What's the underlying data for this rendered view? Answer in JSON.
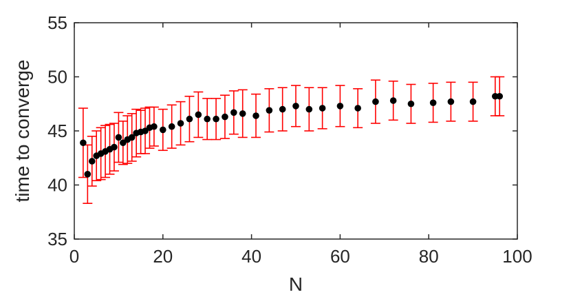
{
  "chart_data": {
    "type": "scatter",
    "xlabel": "N",
    "ylabel": "time to converge",
    "xlim": [
      0,
      100
    ],
    "ylim": [
      35,
      55
    ],
    "xticks": [
      0,
      20,
      40,
      60,
      80,
      100
    ],
    "yticks": [
      35,
      40,
      45,
      50,
      55
    ],
    "xtick_labels": [
      "0",
      "20",
      "40",
      "60",
      "80",
      "100"
    ],
    "ytick_labels": [
      "35",
      "40",
      "45",
      "50",
      "55"
    ],
    "grid": false,
    "box": true,
    "marker_color": "#000000",
    "errorbar_color": "#ff0000",
    "points": [
      {
        "x": 2,
        "y": 43.9,
        "err": 3.2
      },
      {
        "x": 3,
        "y": 41.0,
        "err": 2.7
      },
      {
        "x": 4,
        "y": 42.2,
        "err": 2.3
      },
      {
        "x": 5,
        "y": 42.7,
        "err": 2.3
      },
      {
        "x": 6,
        "y": 42.9,
        "err": 2.4
      },
      {
        "x": 7,
        "y": 43.1,
        "err": 2.4
      },
      {
        "x": 8,
        "y": 43.3,
        "err": 2.3
      },
      {
        "x": 9,
        "y": 43.5,
        "err": 2.2
      },
      {
        "x": 10,
        "y": 44.4,
        "err": 2.3
      },
      {
        "x": 11,
        "y": 43.9,
        "err": 2.0
      },
      {
        "x": 12,
        "y": 44.2,
        "err": 2.2
      },
      {
        "x": 13,
        "y": 44.4,
        "err": 2.2
      },
      {
        "x": 14,
        "y": 44.8,
        "err": 2.2
      },
      {
        "x": 15,
        "y": 44.9,
        "err": 2.0
      },
      {
        "x": 16,
        "y": 45.0,
        "err": 2.1
      },
      {
        "x": 17,
        "y": 45.3,
        "err": 1.9
      },
      {
        "x": 18,
        "y": 45.4,
        "err": 1.8
      },
      {
        "x": 20,
        "y": 45.1,
        "err": 1.9
      },
      {
        "x": 22,
        "y": 45.4,
        "err": 2.0
      },
      {
        "x": 24,
        "y": 45.7,
        "err": 2.0
      },
      {
        "x": 26,
        "y": 46.1,
        "err": 2.1
      },
      {
        "x": 28,
        "y": 46.5,
        "err": 2.1
      },
      {
        "x": 30,
        "y": 46.1,
        "err": 1.9
      },
      {
        "x": 32,
        "y": 46.1,
        "err": 1.9
      },
      {
        "x": 34,
        "y": 46.3,
        "err": 2.0
      },
      {
        "x": 36,
        "y": 46.7,
        "err": 2.0
      },
      {
        "x": 38,
        "y": 46.6,
        "err": 2.2
      },
      {
        "x": 41,
        "y": 46.4,
        "err": 2.0
      },
      {
        "x": 44,
        "y": 46.9,
        "err": 2.0
      },
      {
        "x": 47,
        "y": 47.0,
        "err": 2.0
      },
      {
        "x": 50,
        "y": 47.3,
        "err": 1.9
      },
      {
        "x": 53,
        "y": 47.0,
        "err": 2.0
      },
      {
        "x": 56,
        "y": 47.1,
        "err": 1.9
      },
      {
        "x": 60,
        "y": 47.3,
        "err": 1.9
      },
      {
        "x": 64,
        "y": 47.1,
        "err": 1.8
      },
      {
        "x": 68,
        "y": 47.7,
        "err": 2.0
      },
      {
        "x": 72,
        "y": 47.8,
        "err": 1.8
      },
      {
        "x": 76,
        "y": 47.5,
        "err": 1.8
      },
      {
        "x": 81,
        "y": 47.6,
        "err": 1.8
      },
      {
        "x": 85,
        "y": 47.7,
        "err": 1.8
      },
      {
        "x": 90,
        "y": 47.7,
        "err": 1.8
      },
      {
        "x": 95,
        "y": 48.2,
        "err": 1.8
      },
      {
        "x": 96,
        "y": 48.2,
        "err": 1.8
      }
    ]
  }
}
